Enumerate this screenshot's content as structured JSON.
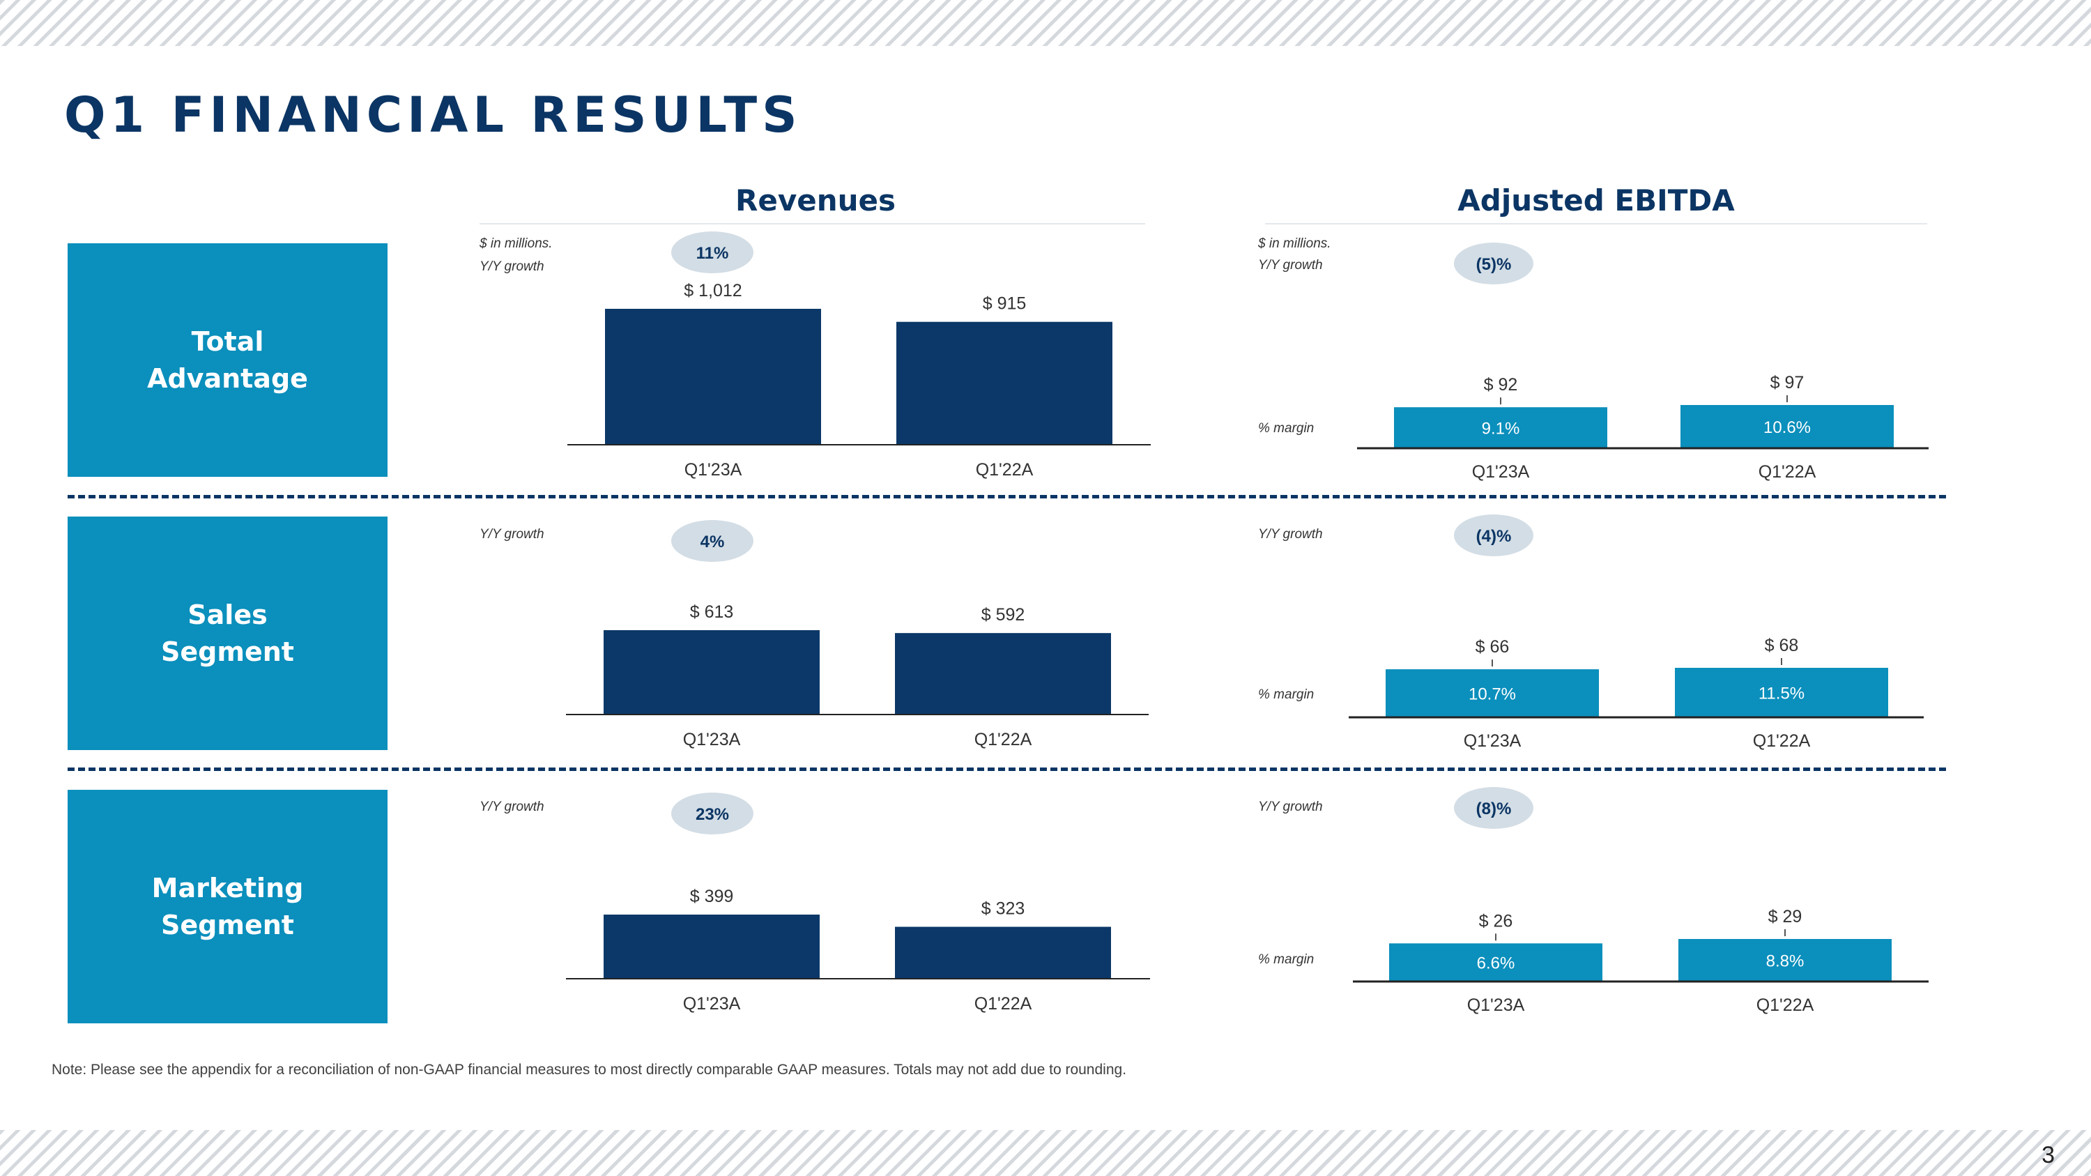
{
  "slide": {
    "title": "Q1 FINANCIAL RESULTS",
    "note": "Note: Please see the appendix for a reconciliation of non-GAAP financial measures to most directly comparable GAAP measures. Totals may not add due to rounding.",
    "page_number": "3"
  },
  "sections": {
    "revenues": "Revenues",
    "ebitda": "Adjusted EBITDA"
  },
  "segments": [
    {
      "label": "Total\nAdvantage"
    },
    {
      "label": "Sales\nSegment"
    },
    {
      "label": "Marketing\nSegment"
    }
  ],
  "labels": {
    "units": "$ in millions.",
    "growth": "Y/Y growth",
    "margin": "% margin"
  },
  "colors": {
    "title_navy": "#0b3564",
    "segment_box": "#0b8fbc",
    "revenue_bar": "#0b3868",
    "ebitda_bar": "#0b8fbc",
    "growth_pill": "#d3dde5",
    "stripe": "#d5d9de"
  },
  "chart_data": [
    {
      "type": "bar",
      "panel": "Revenues",
      "segment": "Total Advantage",
      "categories": [
        "Q1'23A",
        "Q1'22A"
      ],
      "values": [
        1012,
        915
      ],
      "value_labels": [
        "$ 1,012",
        "$ 915"
      ],
      "growth": "11%",
      "ylim": [
        0,
        1012
      ]
    },
    {
      "type": "bar",
      "panel": "Adjusted EBITDA",
      "segment": "Total Advantage",
      "categories": [
        "Q1'23A",
        "Q1'22A"
      ],
      "values": [
        92,
        97
      ],
      "value_labels": [
        "$ 92",
        "$ 97"
      ],
      "margins": [
        "9.1%",
        "10.6%"
      ],
      "growth": "(5)%",
      "ylim": [
        0,
        97
      ]
    },
    {
      "type": "bar",
      "panel": "Revenues",
      "segment": "Sales Segment",
      "categories": [
        "Q1'23A",
        "Q1'22A"
      ],
      "values": [
        613,
        592
      ],
      "value_labels": [
        "$ 613",
        "$ 592"
      ],
      "growth": "4%",
      "ylim": [
        0,
        613
      ]
    },
    {
      "type": "bar",
      "panel": "Adjusted EBITDA",
      "segment": "Sales Segment",
      "categories": [
        "Q1'23A",
        "Q1'22A"
      ],
      "values": [
        66,
        68
      ],
      "value_labels": [
        "$ 66",
        "$ 68"
      ],
      "margins": [
        "10.7%",
        "11.5%"
      ],
      "growth": "(4)%",
      "ylim": [
        0,
        68
      ]
    },
    {
      "type": "bar",
      "panel": "Revenues",
      "segment": "Marketing Segment",
      "categories": [
        "Q1'23A",
        "Q1'22A"
      ],
      "values": [
        399,
        323
      ],
      "value_labels": [
        "$ 399",
        "$ 323"
      ],
      "growth": "23%",
      "ylim": [
        0,
        399
      ]
    },
    {
      "type": "bar",
      "panel": "Adjusted EBITDA",
      "segment": "Marketing Segment",
      "categories": [
        "Q1'23A",
        "Q1'22A"
      ],
      "values": [
        26,
        29
      ],
      "value_labels": [
        "$ 26",
        "$ 29"
      ],
      "margins": [
        "6.6%",
        "8.8%"
      ],
      "growth": "(8)%",
      "ylim": [
        0,
        29
      ]
    }
  ]
}
